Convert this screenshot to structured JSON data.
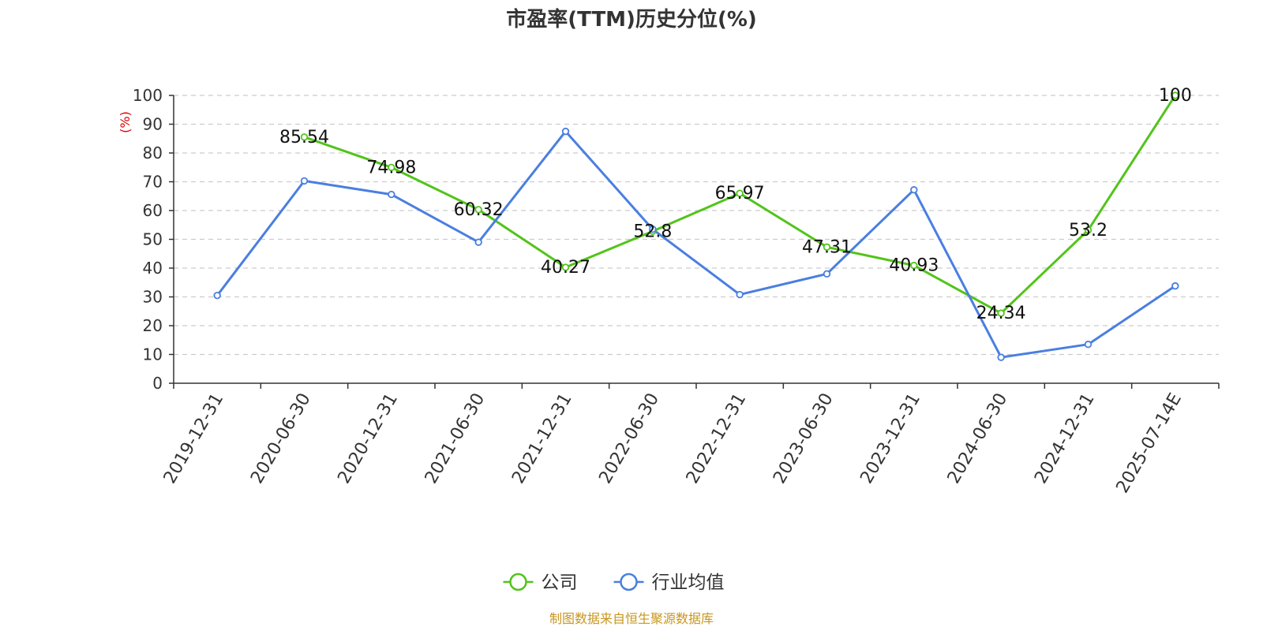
{
  "chart_data": {
    "type": "line",
    "title": "市盈率(TTM)历史分位(%)",
    "ylabel": "(%)",
    "ylim": [
      0,
      100
    ],
    "yticks": [
      0,
      10,
      20,
      30,
      40,
      50,
      60,
      70,
      80,
      90,
      100
    ],
    "grid": true,
    "legend_position": "bottom-center",
    "categories": [
      "2019-12-31",
      "2020-06-30",
      "2020-12-31",
      "2021-06-30",
      "2021-12-31",
      "2022-06-30",
      "2022-12-31",
      "2023-06-30",
      "2023-12-31",
      "2024-06-30",
      "2024-12-31",
      "2025-07-14E"
    ],
    "series": [
      {
        "name": "公司",
        "color": "#52c41a",
        "values": [
          null,
          85.54,
          74.98,
          60.32,
          40.27,
          52.8,
          65.97,
          47.31,
          40.93,
          24.34,
          53.2,
          100
        ],
        "labels": [
          null,
          "85.54",
          "74.98",
          "60.32",
          "40.27",
          "52.8",
          "65.97",
          "47.31",
          "40.93",
          "24.34",
          "53.2",
          "100"
        ]
      },
      {
        "name": "行业均值",
        "color": "#4a7fe0",
        "values": [
          30.5,
          70.3,
          65.6,
          49.0,
          87.5,
          53.5,
          30.8,
          38.0,
          67.2,
          9.0,
          13.5,
          33.8
        ]
      }
    ],
    "source": "制图数据来自恒生聚源数据库"
  }
}
